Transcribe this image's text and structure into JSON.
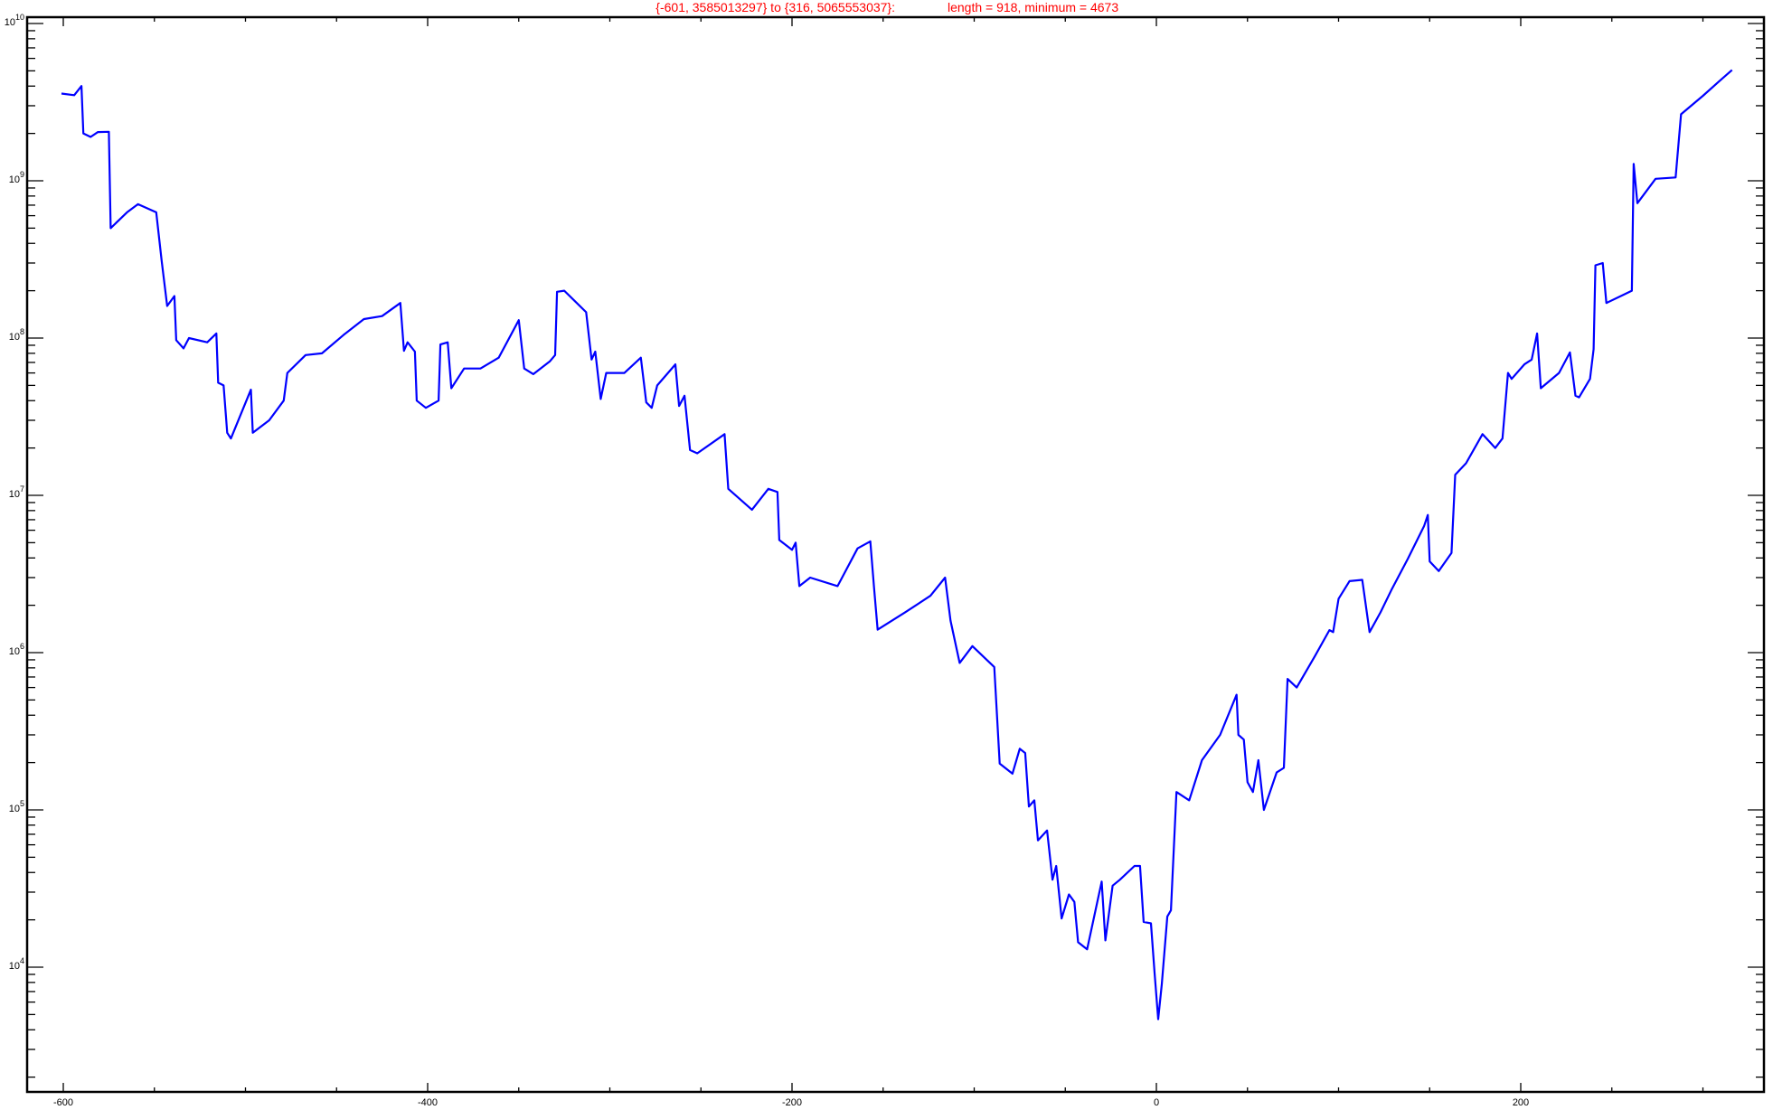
{
  "chart_data": {
    "type": "line",
    "title": "{-601, 3585013297} to {316, 5065553037}:",
    "subtitle": "length = 918, minimum = 4673",
    "xlabel": "",
    "ylabel": "",
    "xlim": [
      -616,
      338
    ],
    "ylim": [
      1620,
      11000000000
    ],
    "yscale": "log",
    "grid": false,
    "line_color": "#0000ff",
    "title_color": "#ff0000",
    "x_ticks": [
      -600,
      -400,
      -200,
      0,
      200
    ],
    "x_tick_labels": [
      "-600",
      "-400",
      "-200",
      "0",
      "200"
    ],
    "y_ticks": [
      10000,
      100000,
      1000000,
      10000000,
      100000000,
      1000000000,
      10000000000
    ],
    "y_tick_labels": [
      {
        "base": "10",
        "exp": "4"
      },
      {
        "base": "10",
        "exp": "5"
      },
      {
        "base": "10",
        "exp": "6"
      },
      {
        "base": "10",
        "exp": "7"
      },
      {
        "base": "10",
        "exp": "8"
      },
      {
        "base": "10",
        "exp": "9"
      },
      {
        "base": "10",
        "exp": "10"
      }
    ],
    "series": [
      {
        "x": [
          -601,
          -594,
          -590,
          -589,
          -585,
          -581,
          -575,
          -574,
          -565,
          -559,
          -549,
          -546,
          -543,
          -539,
          -538,
          -534,
          -531,
          -521,
          -516,
          -515,
          -512,
          -510,
          -508,
          -497,
          -496,
          -487,
          -479,
          -477,
          -467,
          -458,
          -446,
          -435,
          -425,
          -415,
          -413,
          -411,
          -407,
          -406,
          -401,
          -394,
          -393,
          -389,
          -387,
          -380,
          -371,
          -361,
          -350,
          -347,
          -342,
          -333,
          -330,
          -329,
          -325,
          -313,
          -310,
          -308,
          -305,
          -302,
          -292,
          -283,
          -280,
          -277,
          -274,
          -264,
          -262,
          -259,
          -256,
          -252,
          -237,
          -235,
          -222,
          -213,
          -208,
          -207,
          -200,
          -198,
          -196,
          -190,
          -175,
          -164,
          -157,
          -155,
          -153,
          -138,
          -124,
          -116,
          -113,
          -108,
          -101,
          -89,
          -86,
          -79,
          -75,
          -72,
          -70,
          -67,
          -65,
          -60,
          -57,
          -55,
          -52,
          -48,
          -45,
          -43,
          -38,
          -30,
          -28,
          -24,
          -20,
          -12,
          -9,
          -7,
          -3,
          -1,
          1,
          3,
          6,
          8,
          11,
          18,
          25,
          35,
          44,
          45,
          48,
          50,
          53,
          56,
          59,
          66,
          70,
          72,
          77,
          87,
          95,
          97,
          100,
          106,
          113,
          117,
          123,
          129,
          138,
          147,
          149,
          150,
          155,
          162,
          164,
          170,
          179,
          186,
          190,
          193,
          195,
          202,
          206,
          209,
          211,
          221,
          227,
          230,
          232,
          238,
          240,
          241,
          245,
          247,
          257,
          261,
          262,
          264,
          274,
          285,
          288,
          300,
          309,
          316
        ],
        "y": [
          3585013297,
          3500000000.0,
          4000000000.0,
          2000000000.0,
          1900000000.0,
          2040000000.0,
          2050000000.0,
          500000000.0,
          630000000.0,
          710000000.0,
          630000000.0,
          310000000.0,
          160000000.0,
          185000000.0,
          97000000.0,
          86000000.0,
          100000000.0,
          94000000.0,
          107000000.0,
          52000000.0,
          50000000.0,
          25000000.0,
          23000000.0,
          47000000.0,
          25000000.0,
          30000000.0,
          40000000.0,
          60000000.0,
          78000000.0,
          80000000.0,
          105000000.0,
          132000000.0,
          138000000.0,
          167000000.0,
          83000000.0,
          94000000.0,
          82000000.0,
          40000000.0,
          36000000.0,
          40000000.0,
          91000000.0,
          94000000.0,
          48000000.0,
          64000000.0,
          64000000.0,
          75000000.0,
          130000000.0,
          64000000.0,
          59000000.0,
          71000000.0,
          78000000.0,
          197000000.0,
          200000000.0,
          146000000.0,
          73000000.0,
          82000000.0,
          41000000.0,
          60000000.0,
          60000000.0,
          75000000.0,
          39000000.0,
          36000000.0,
          50000000.0,
          68000000.0,
          37000000.0,
          43000000.0,
          19400000.0,
          18500000.0,
          24500000.0,
          11000000.0,
          8100000.0,
          11000000.0,
          10500000.0,
          5200000.0,
          4500000.0,
          5000000.0,
          2650000.0,
          3000000.0,
          2650000.0,
          4600000.0,
          5100000.0,
          2600000.0,
          1400000.0,
          1800000.0,
          2300000.0,
          3000000.0,
          1600000.0,
          860000.0,
          1100000.0,
          810000.0,
          197000.0,
          170000.0,
          245000.0,
          230000.0,
          105000.0,
          115000.0,
          64000.0,
          74000.0,
          36000.0,
          44000.0,
          20400.0,
          29000.0,
          26000.0,
          14400.0,
          13000.0,
          35000.0,
          14800.0,
          33000.0,
          36000.0,
          44000.0,
          44000.0,
          19400.0,
          19000.0,
          9200.0,
          4673,
          7800.0,
          21000.0,
          23000.0,
          130000.0,
          115000.0,
          207000.0,
          300000.0,
          540000.0,
          300000.0,
          280000.0,
          150000.0,
          130000.0,
          207000.0,
          100000.0,
          173000.0,
          185000.0,
          680000.0,
          600000.0,
          950000.0,
          1390000.0,
          1350000.0,
          2200000.0,
          2850000.0,
          2900000.0,
          1350000.0,
          1800000.0,
          2500000.0,
          3950000.0,
          6400000.0,
          7500000.0,
          3800000.0,
          3300000.0,
          4300000.0,
          13500000.0,
          16000000.0,
          24500000.0,
          20000000.0,
          23000000.0,
          60000000.0,
          55000000.0,
          68000000.0,
          73000000.0,
          107000000.0,
          48000000.0,
          60000000.0,
          81000000.0,
          43000000.0,
          42000000.0,
          55000000.0,
          85000000.0,
          290000000.0,
          300000000.0,
          167000000.0,
          190000000.0,
          200000000.0,
          1280000000.0,
          720000000.0,
          1030000000.0,
          1050000000.0,
          2650000000.0,
          3470000000.0,
          4300000000.0,
          5065553037
        ]
      }
    ]
  }
}
